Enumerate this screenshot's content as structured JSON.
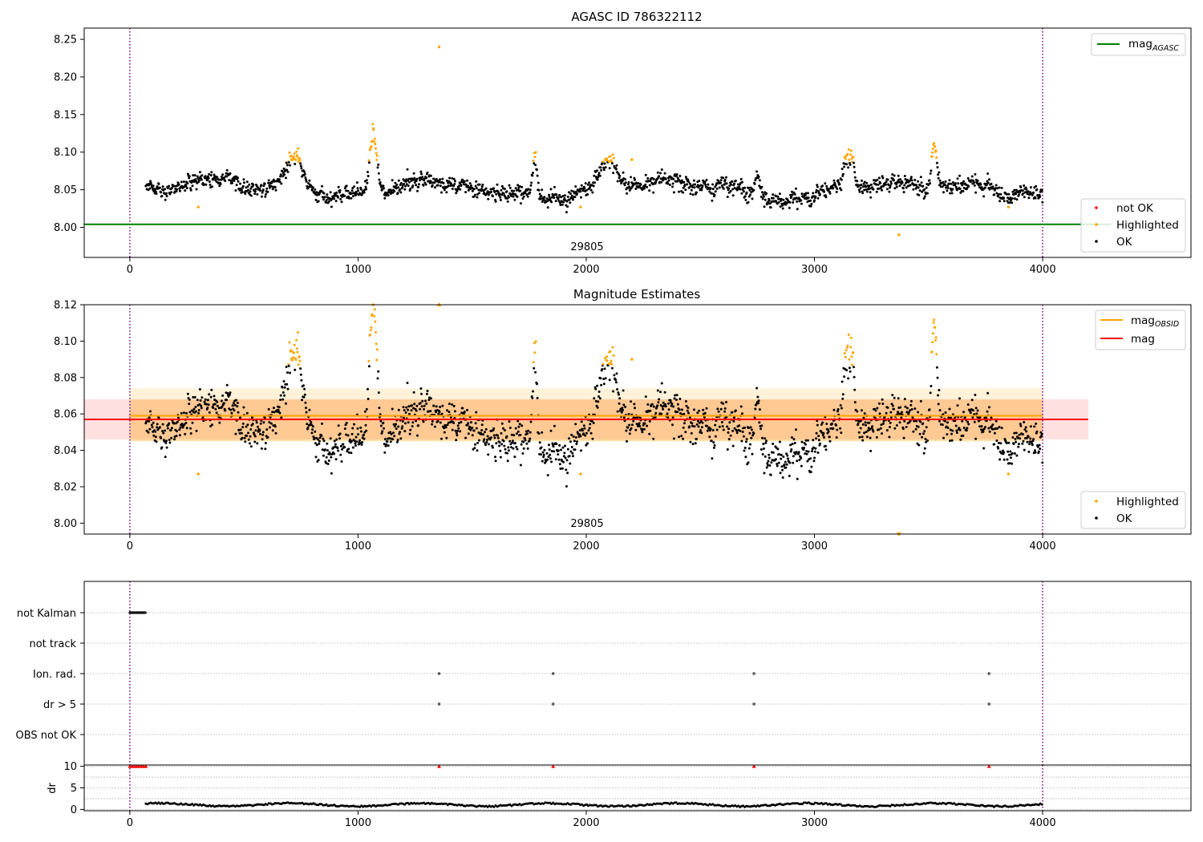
{
  "chart_data": [
    {
      "id": "agasc",
      "type": "scatter",
      "title": "AGASC ID 786322112",
      "x_range": [
        -200,
        4650
      ],
      "y_range": [
        7.96,
        8.265
      ],
      "x_ticks": [
        0,
        1000,
        2000,
        3000,
        4000
      ],
      "x_tick_labels": [
        "0",
        "1000",
        "2000",
        "3000",
        "4000"
      ],
      "y_ticks": [
        8.0,
        8.05,
        8.1,
        8.15,
        8.2,
        8.25
      ],
      "y_tick_labels": [
        "8.00",
        "8.05",
        "8.10",
        "8.15",
        "8.20",
        "8.25"
      ],
      "obsid_label": {
        "text": "29805",
        "x": 2000
      },
      "vertical_lines": [
        0,
        4000
      ],
      "mag_agasc": 8.004,
      "mag_agasc_extent": [
        -200,
        4300
      ],
      "legends": [
        {
          "position": "top-right",
          "entries": [
            {
              "text": "mag",
              "subscript": "AGASC",
              "marker": "line",
              "color": "#008000"
            }
          ]
        },
        {
          "position": "bottom-right",
          "entries": [
            {
              "text": "not OK",
              "marker": "dot",
              "color": "#ff0000"
            },
            {
              "text": "Highlighted",
              "marker": "dot",
              "color": "#ffa500"
            },
            {
              "text": "OK",
              "marker": "dot",
              "color": "#000000"
            }
          ]
        }
      ],
      "series": {
        "ok_envelope": {
          "x_start": 70,
          "x_end": 4000,
          "baseline": 8.05,
          "noise": 0.008,
          "bumps": [
            {
              "x": 720,
              "width": 90,
              "height": 0.045
            },
            {
              "x": 1065,
              "width": 30,
              "height": 0.07
            },
            {
              "x": 1775,
              "width": 20,
              "height": 0.055
            },
            {
              "x": 2100,
              "width": 60,
              "height": 0.035
            },
            {
              "x": 2750,
              "width": 30,
              "height": 0.03
            },
            {
              "x": 3150,
              "width": 50,
              "height": 0.05
            },
            {
              "x": 3525,
              "width": 25,
              "height": 0.06
            }
          ],
          "threshold": 8.087
        },
        "highlighted_extra": [
          {
            "x": 1355,
            "y": 8.24
          },
          {
            "x": 3370,
            "y": 7.99
          },
          {
            "x": 300,
            "y": 8.027
          },
          {
            "x": 1975,
            "y": 8.027
          },
          {
            "x": 3850,
            "y": 8.027
          },
          {
            "x": 2200,
            "y": 8.09
          }
        ]
      }
    },
    {
      "id": "mag_estimates",
      "type": "scatter",
      "title": "Magnitude Estimates",
      "x_range": [
        -200,
        4650
      ],
      "y_range": [
        7.994,
        8.12
      ],
      "x_ticks": [
        0,
        1000,
        2000,
        3000,
        4000
      ],
      "x_tick_labels": [
        "0",
        "1000",
        "2000",
        "3000",
        "4000"
      ],
      "y_ticks": [
        8.0,
        8.02,
        8.04,
        8.06,
        8.08,
        8.1,
        8.12
      ],
      "y_tick_labels": [
        "8.00",
        "8.02",
        "8.04",
        "8.06",
        "8.08",
        "8.10",
        "8.12"
      ],
      "obsid_label": {
        "text": "29805",
        "x": 2000
      },
      "vertical_lines": [
        0,
        4000
      ],
      "mag_obsid": {
        "value": 8.059,
        "extent": [
          0,
          4000
        ],
        "band_outer": [
          8.045,
          8.074
        ],
        "band_inner": [
          8.045,
          8.068
        ]
      },
      "mag": {
        "value": 8.057,
        "extent": [
          -200,
          4200
        ],
        "band": [
          8.046,
          8.068
        ]
      },
      "legends": [
        {
          "position": "top-right",
          "entries": [
            {
              "text": "mag",
              "subscript": "OBSID",
              "marker": "line",
              "color": "#ffa500"
            },
            {
              "text": "mag",
              "subscript": "",
              "marker": "line",
              "color": "#ff0000"
            }
          ]
        },
        {
          "position": "bottom-right",
          "entries": [
            {
              "text": "Highlighted",
              "marker": "dot",
              "color": "#ffa500"
            },
            {
              "text": "OK",
              "marker": "dot",
              "color": "#000000"
            }
          ]
        }
      ]
    },
    {
      "id": "flags",
      "type": "scatter",
      "x_range": [
        -200,
        4650
      ],
      "categories": [
        "not Kalman",
        "not track",
        "Ion. rad.",
        "dr > 5",
        "OBS not OK"
      ],
      "not_kalman_range": [
        0,
        70
      ],
      "ion_rad_x": [
        1355,
        1855,
        2735,
        3765
      ],
      "dr5_x": [
        1355,
        1855,
        2735,
        3765
      ],
      "vertical_lines": [
        0,
        4000
      ]
    },
    {
      "id": "dr",
      "type": "scatter",
      "ylabel": "dr",
      "x_range": [
        -200,
        4650
      ],
      "y_range": [
        -0.3,
        10.3
      ],
      "x_ticks": [
        0,
        1000,
        2000,
        3000,
        4000
      ],
      "x_tick_labels": [
        "0",
        "1000",
        "2000",
        "3000",
        "4000"
      ],
      "y_ticks": [
        0,
        5,
        10
      ],
      "y_tick_labels": [
        "0",
        "5",
        "10"
      ],
      "vertical_lines": [
        0,
        4000
      ],
      "clipped_x": [
        0,
        10,
        20,
        30,
        40,
        50,
        60,
        70,
        1355,
        1855,
        2735,
        3765
      ],
      "dr_range": [
        70,
        4000
      ],
      "dr_typical": [
        0.2,
        1.6
      ]
    }
  ],
  "colors": {
    "ok": "#000000",
    "highlighted": "#ffa500",
    "not_ok": "#ff0000",
    "agasc_line": "#008000",
    "obsid_line": "#ffa500",
    "mag_line": "#ff0000",
    "marker_line": "#800080"
  }
}
